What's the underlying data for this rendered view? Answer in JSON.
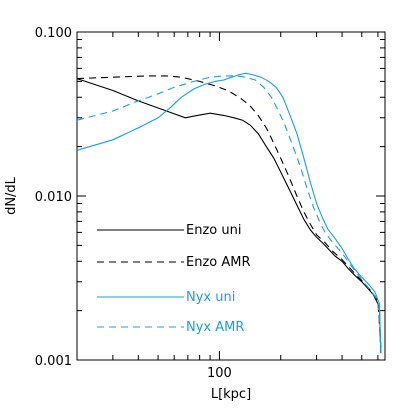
{
  "chart_data": {
    "type": "line",
    "xlabel": "L[kpc]",
    "ylabel": "dN/dL",
    "xscale": "log",
    "yscale": "log",
    "xlim": [
      20,
      650
    ],
    "ylim": [
      0.001,
      0.1
    ],
    "x_ticks": [
      {
        "value": 100,
        "label": "100"
      }
    ],
    "y_ticks": [
      {
        "value": 0.001,
        "label": "0.001"
      },
      {
        "value": 0.01,
        "label": "0.010"
      },
      {
        "value": 0.1,
        "label": "0.100"
      }
    ],
    "grid": false,
    "legend_position": "lower-left",
    "series": [
      {
        "name": "Enzo uni",
        "color": "#000000",
        "dash": "solid",
        "points": [
          [
            20,
            0.052
          ],
          [
            30,
            0.044
          ],
          [
            40,
            0.038
          ],
          [
            55,
            0.033
          ],
          [
            68,
            0.03
          ],
          [
            78,
            0.031
          ],
          [
            90,
            0.032
          ],
          [
            105,
            0.031
          ],
          [
            118,
            0.03
          ],
          [
            130,
            0.029
          ],
          [
            142,
            0.027
          ],
          [
            155,
            0.024
          ],
          [
            170,
            0.02
          ],
          [
            185,
            0.017
          ],
          [
            200,
            0.014
          ],
          [
            220,
            0.011
          ],
          [
            240,
            0.0088
          ],
          [
            260,
            0.0072
          ],
          [
            280,
            0.0062
          ],
          [
            300,
            0.0056
          ],
          [
            320,
            0.0052
          ],
          [
            340,
            0.0048
          ],
          [
            370,
            0.0043
          ],
          [
            400,
            0.004
          ],
          [
            430,
            0.0036
          ],
          [
            460,
            0.0033
          ],
          [
            500,
            0.003
          ],
          [
            540,
            0.0027
          ],
          [
            570,
            0.0025
          ],
          [
            590,
            0.0023
          ],
          [
            610,
            0.0021
          ],
          [
            620,
            0.0011
          ]
        ]
      },
      {
        "name": "Enzo AMR",
        "color": "#000000",
        "dash": "dashed",
        "points": [
          [
            20,
            0.052
          ],
          [
            30,
            0.053
          ],
          [
            45,
            0.054
          ],
          [
            55,
            0.054
          ],
          [
            65,
            0.053
          ],
          [
            80,
            0.05
          ],
          [
            95,
            0.047
          ],
          [
            110,
            0.044
          ],
          [
            125,
            0.04
          ],
          [
            140,
            0.036
          ],
          [
            155,
            0.031
          ],
          [
            170,
            0.026
          ],
          [
            185,
            0.021
          ],
          [
            200,
            0.017
          ],
          [
            220,
            0.013
          ],
          [
            240,
            0.01
          ],
          [
            260,
            0.008
          ],
          [
            280,
            0.0067
          ],
          [
            300,
            0.0058
          ],
          [
            330,
            0.0052
          ],
          [
            360,
            0.0046
          ],
          [
            400,
            0.0041
          ],
          [
            440,
            0.0036
          ],
          [
            480,
            0.0032
          ],
          [
            520,
            0.0029
          ],
          [
            560,
            0.0026
          ],
          [
            600,
            0.0023
          ],
          [
            620,
            0.0012
          ]
        ]
      },
      {
        "name": "Nyx uni",
        "color": "#1a9fe0",
        "dash": "solid",
        "points": [
          [
            20,
            0.019
          ],
          [
            30,
            0.022
          ],
          [
            40,
            0.026
          ],
          [
            50,
            0.03
          ],
          [
            58,
            0.035
          ],
          [
            65,
            0.04
          ],
          [
            75,
            0.045
          ],
          [
            85,
            0.048
          ],
          [
            95,
            0.05
          ],
          [
            105,
            0.051
          ],
          [
            115,
            0.053
          ],
          [
            125,
            0.055
          ],
          [
            135,
            0.056
          ],
          [
            145,
            0.055
          ],
          [
            160,
            0.053
          ],
          [
            175,
            0.05
          ],
          [
            190,
            0.046
          ],
          [
            205,
            0.04
          ],
          [
            220,
            0.032
          ],
          [
            240,
            0.024
          ],
          [
            260,
            0.017
          ],
          [
            280,
            0.012
          ],
          [
            300,
            0.009
          ],
          [
            320,
            0.0074
          ],
          [
            340,
            0.0063
          ],
          [
            370,
            0.0055
          ],
          [
            400,
            0.0048
          ],
          [
            430,
            0.0041
          ],
          [
            460,
            0.0036
          ],
          [
            500,
            0.0032
          ],
          [
            540,
            0.0029
          ],
          [
            580,
            0.0026
          ],
          [
            610,
            0.0022
          ],
          [
            620,
            0.0011
          ]
        ]
      },
      {
        "name": "Nyx AMR",
        "color": "#1a9fe0",
        "dash": "dashed",
        "points": [
          [
            20,
            0.029
          ],
          [
            30,
            0.033
          ],
          [
            40,
            0.038
          ],
          [
            50,
            0.042
          ],
          [
            60,
            0.046
          ],
          [
            75,
            0.05
          ],
          [
            90,
            0.053
          ],
          [
            105,
            0.054
          ],
          [
            120,
            0.054
          ],
          [
            135,
            0.053
          ],
          [
            150,
            0.051
          ],
          [
            165,
            0.046
          ],
          [
            180,
            0.04
          ],
          [
            195,
            0.033
          ],
          [
            210,
            0.027
          ],
          [
            230,
            0.02
          ],
          [
            250,
            0.015
          ],
          [
            270,
            0.011
          ],
          [
            290,
            0.0085
          ],
          [
            310,
            0.007
          ],
          [
            330,
            0.006
          ],
          [
            360,
            0.0052
          ],
          [
            400,
            0.0045
          ],
          [
            440,
            0.0038
          ],
          [
            480,
            0.0033
          ],
          [
            520,
            0.0029
          ],
          [
            560,
            0.0026
          ],
          [
            600,
            0.0023
          ],
          [
            620,
            0.0012
          ]
        ]
      }
    ]
  }
}
